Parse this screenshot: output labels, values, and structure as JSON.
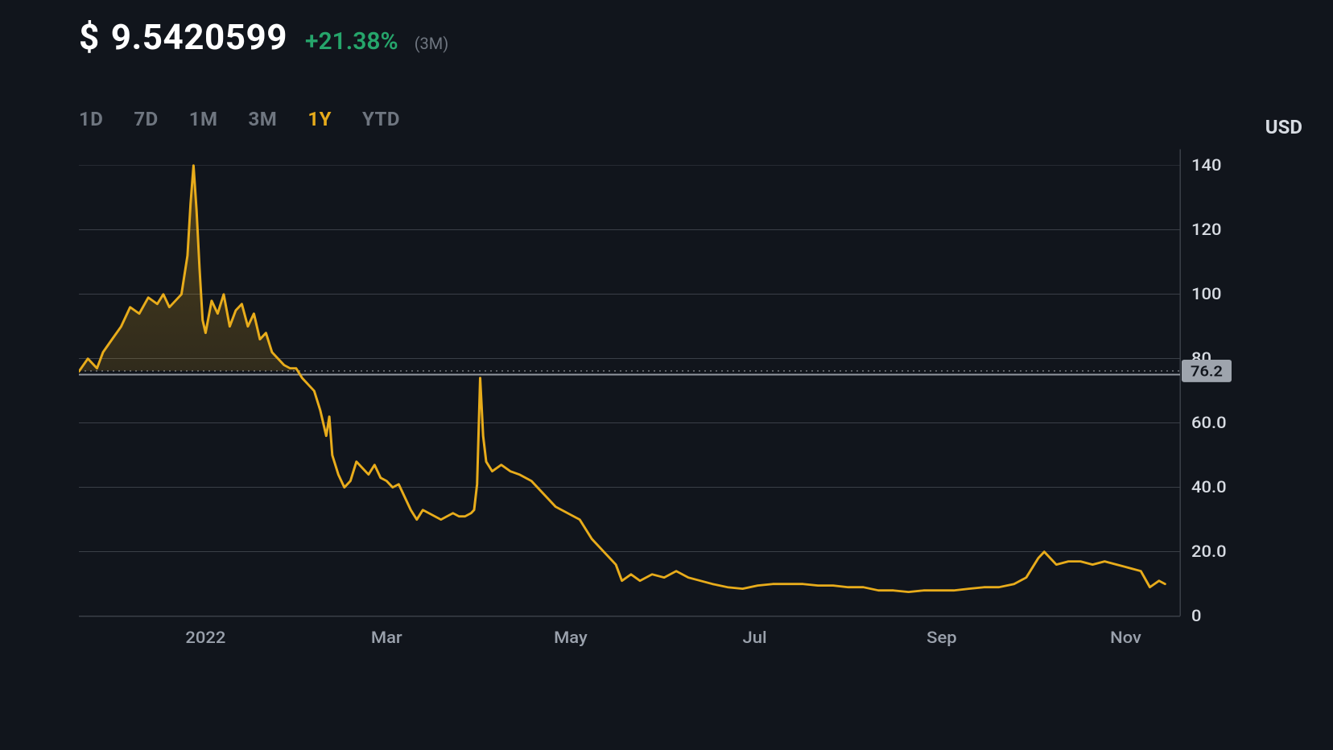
{
  "header": {
    "currency_symbol": "$",
    "price": "9.5420599",
    "change_text": "+21.38%",
    "change_color": "#26a56b",
    "period_label": "(3M)"
  },
  "ranges": {
    "items": [
      {
        "label": "1D",
        "active": false
      },
      {
        "label": "7D",
        "active": false
      },
      {
        "label": "1M",
        "active": false
      },
      {
        "label": "3M",
        "active": false
      },
      {
        "label": "1Y",
        "active": true
      },
      {
        "label": "YTD",
        "active": false
      }
    ]
  },
  "chart": {
    "type": "line",
    "y_unit_label": "USD",
    "background_color": "#11151c",
    "grid_color": "#3a3f47",
    "line_color": "#e8ac1b",
    "line_width": 3,
    "area_gradient_from": "rgba(232,172,27,0.25)",
    "area_gradient_to": "rgba(232,172,27,0.0)",
    "area_fill_above_ref": true,
    "x_domain": [
      0,
      365
    ],
    "y_domain": [
      0,
      145
    ],
    "y_ticks": [
      {
        "value": 0,
        "label": "0"
      },
      {
        "value": 20,
        "label": "20.0"
      },
      {
        "value": 40,
        "label": "40.0"
      },
      {
        "value": 60,
        "label": "60.0"
      },
      {
        "value": 80,
        "label": "80"
      },
      {
        "value": 100,
        "label": "100"
      },
      {
        "value": 120,
        "label": "120"
      },
      {
        "value": 140,
        "label": "140"
      }
    ],
    "x_ticks": [
      {
        "value": 42,
        "label": "2022"
      },
      {
        "value": 102,
        "label": "Mar"
      },
      {
        "value": 163,
        "label": "May"
      },
      {
        "value": 224,
        "label": "Jul"
      },
      {
        "value": 286,
        "label": "Sep"
      },
      {
        "value": 347,
        "label": "Nov"
      }
    ],
    "reference_line": {
      "value": 76.2,
      "label": "76.2",
      "badge_bg": "#9ea4ad",
      "badge_fg": "#11151c"
    },
    "series": [
      {
        "x": 0,
        "y": 76
      },
      {
        "x": 3,
        "y": 80
      },
      {
        "x": 6,
        "y": 77
      },
      {
        "x": 8,
        "y": 82
      },
      {
        "x": 11,
        "y": 86
      },
      {
        "x": 14,
        "y": 90
      },
      {
        "x": 17,
        "y": 96
      },
      {
        "x": 20,
        "y": 94
      },
      {
        "x": 23,
        "y": 99
      },
      {
        "x": 26,
        "y": 97
      },
      {
        "x": 28,
        "y": 100
      },
      {
        "x": 30,
        "y": 96
      },
      {
        "x": 32,
        "y": 98
      },
      {
        "x": 34,
        "y": 100
      },
      {
        "x": 36,
        "y": 112
      },
      {
        "x": 37,
        "y": 128
      },
      {
        "x": 38,
        "y": 140
      },
      {
        "x": 39,
        "y": 126
      },
      {
        "x": 40,
        "y": 108
      },
      {
        "x": 41,
        "y": 92
      },
      {
        "x": 42,
        "y": 88
      },
      {
        "x": 44,
        "y": 98
      },
      {
        "x": 46,
        "y": 94
      },
      {
        "x": 48,
        "y": 100
      },
      {
        "x": 50,
        "y": 90
      },
      {
        "x": 52,
        "y": 95
      },
      {
        "x": 54,
        "y": 97
      },
      {
        "x": 56,
        "y": 90
      },
      {
        "x": 58,
        "y": 94
      },
      {
        "x": 60,
        "y": 86
      },
      {
        "x": 62,
        "y": 88
      },
      {
        "x": 64,
        "y": 82
      },
      {
        "x": 66,
        "y": 80
      },
      {
        "x": 68,
        "y": 78
      },
      {
        "x": 70,
        "y": 77
      },
      {
        "x": 72,
        "y": 77
      },
      {
        "x": 74,
        "y": 74
      },
      {
        "x": 76,
        "y": 72
      },
      {
        "x": 78,
        "y": 70
      },
      {
        "x": 80,
        "y": 64
      },
      {
        "x": 82,
        "y": 56
      },
      {
        "x": 83,
        "y": 62
      },
      {
        "x": 84,
        "y": 50
      },
      {
        "x": 86,
        "y": 44
      },
      {
        "x": 88,
        "y": 40
      },
      {
        "x": 90,
        "y": 42
      },
      {
        "x": 92,
        "y": 48
      },
      {
        "x": 94,
        "y": 46
      },
      {
        "x": 96,
        "y": 44
      },
      {
        "x": 98,
        "y": 47
      },
      {
        "x": 100,
        "y": 43
      },
      {
        "x": 102,
        "y": 42
      },
      {
        "x": 104,
        "y": 40
      },
      {
        "x": 106,
        "y": 41
      },
      {
        "x": 108,
        "y": 37
      },
      {
        "x": 110,
        "y": 33
      },
      {
        "x": 112,
        "y": 30
      },
      {
        "x": 114,
        "y": 33
      },
      {
        "x": 116,
        "y": 32
      },
      {
        "x": 118,
        "y": 31
      },
      {
        "x": 120,
        "y": 30
      },
      {
        "x": 122,
        "y": 31
      },
      {
        "x": 124,
        "y": 32
      },
      {
        "x": 126,
        "y": 31
      },
      {
        "x": 128,
        "y": 31
      },
      {
        "x": 130,
        "y": 32
      },
      {
        "x": 131,
        "y": 33
      },
      {
        "x": 132,
        "y": 41
      },
      {
        "x": 133,
        "y": 74
      },
      {
        "x": 134,
        "y": 56
      },
      {
        "x": 135,
        "y": 48
      },
      {
        "x": 137,
        "y": 45
      },
      {
        "x": 140,
        "y": 47
      },
      {
        "x": 143,
        "y": 45
      },
      {
        "x": 146,
        "y": 44
      },
      {
        "x": 150,
        "y": 42
      },
      {
        "x": 154,
        "y": 38
      },
      {
        "x": 158,
        "y": 34
      },
      {
        "x": 162,
        "y": 32
      },
      {
        "x": 166,
        "y": 30
      },
      {
        "x": 170,
        "y": 24
      },
      {
        "x": 174,
        "y": 20
      },
      {
        "x": 178,
        "y": 16
      },
      {
        "x": 180,
        "y": 11
      },
      {
        "x": 183,
        "y": 13
      },
      {
        "x": 186,
        "y": 11
      },
      {
        "x": 190,
        "y": 13
      },
      {
        "x": 194,
        "y": 12
      },
      {
        "x": 198,
        "y": 14
      },
      {
        "x": 202,
        "y": 12
      },
      {
        "x": 206,
        "y": 11
      },
      {
        "x": 210,
        "y": 10
      },
      {
        "x": 215,
        "y": 9
      },
      {
        "x": 220,
        "y": 8.5
      },
      {
        "x": 225,
        "y": 9.5
      },
      {
        "x": 230,
        "y": 10
      },
      {
        "x": 235,
        "y": 10
      },
      {
        "x": 240,
        "y": 10
      },
      {
        "x": 245,
        "y": 9.5
      },
      {
        "x": 250,
        "y": 9.5
      },
      {
        "x": 255,
        "y": 9
      },
      {
        "x": 260,
        "y": 9
      },
      {
        "x": 265,
        "y": 8
      },
      {
        "x": 270,
        "y": 8
      },
      {
        "x": 275,
        "y": 7.5
      },
      {
        "x": 280,
        "y": 8
      },
      {
        "x": 285,
        "y": 8
      },
      {
        "x": 290,
        "y": 8
      },
      {
        "x": 295,
        "y": 8.5
      },
      {
        "x": 300,
        "y": 9
      },
      {
        "x": 305,
        "y": 9
      },
      {
        "x": 310,
        "y": 10
      },
      {
        "x": 314,
        "y": 12
      },
      {
        "x": 318,
        "y": 18
      },
      {
        "x": 320,
        "y": 20
      },
      {
        "x": 324,
        "y": 16
      },
      {
        "x": 328,
        "y": 17
      },
      {
        "x": 332,
        "y": 17
      },
      {
        "x": 336,
        "y": 16
      },
      {
        "x": 340,
        "y": 17
      },
      {
        "x": 344,
        "y": 16
      },
      {
        "x": 348,
        "y": 15
      },
      {
        "x": 352,
        "y": 14
      },
      {
        "x": 355,
        "y": 9
      },
      {
        "x": 358,
        "y": 11
      },
      {
        "x": 360,
        "y": 10
      }
    ]
  }
}
